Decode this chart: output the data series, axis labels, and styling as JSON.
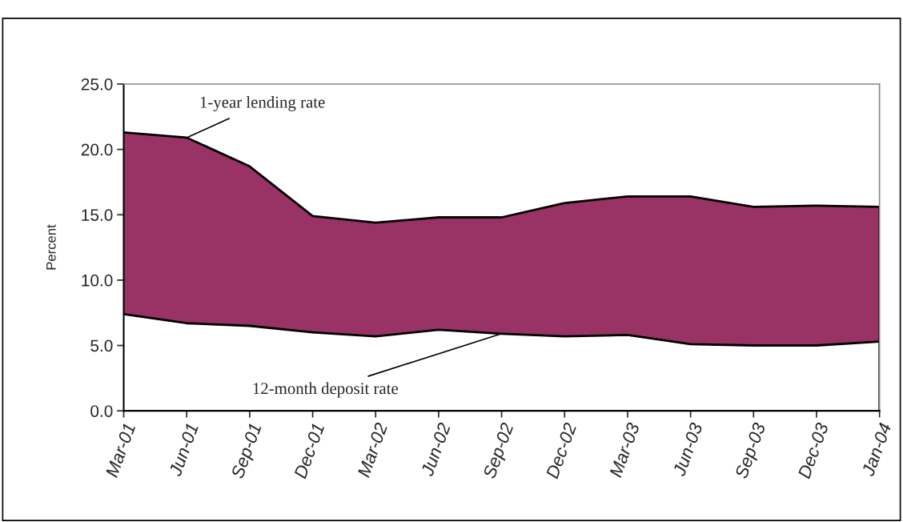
{
  "chart_data": {
    "type": "area",
    "ylabel": "Percent",
    "categories": [
      "Mar-01",
      "Jun-01",
      "Sep-01",
      "Dec-01",
      "Mar-02",
      "Jun-02",
      "Sep-02",
      "Dec-02",
      "Mar-03",
      "Jun-03",
      "Sep-03",
      "Dec-03",
      "Jan-04"
    ],
    "series": [
      {
        "color": "#993366",
        "values": [
          21.3,
          20.9,
          18.7,
          14.9,
          14.4,
          14.8,
          14.8,
          15.9,
          16.4,
          16.4,
          15.6,
          15.7,
          15.6
        ]
      },
      {
        "color": "#ffffff",
        "values": [
          7.4,
          6.7,
          6.5,
          6.0,
          5.7,
          6.2,
          5.9,
          5.7,
          5.8,
          5.1,
          5.0,
          5.0,
          5.3
        ]
      }
    ],
    "annotations": [
      {
        "text": "1-year lending rate",
        "x": "Jun-01",
        "y": 20.9
      },
      {
        "text": "12-month deposit rate",
        "x": "Sep-02",
        "y": 5.9
      }
    ],
    "ylim": [
      0,
      25
    ],
    "yticks": [
      {
        "value": 0,
        "label": "0.0"
      },
      {
        "value": 5,
        "label": "5.0"
      },
      {
        "value": 10,
        "label": "10.0"
      },
      {
        "value": 15,
        "label": "15.0"
      },
      {
        "value": 20,
        "label": "20.0"
      },
      {
        "value": 25,
        "label": "25.0"
      }
    ],
    "grid": false,
    "legend": false
  }
}
